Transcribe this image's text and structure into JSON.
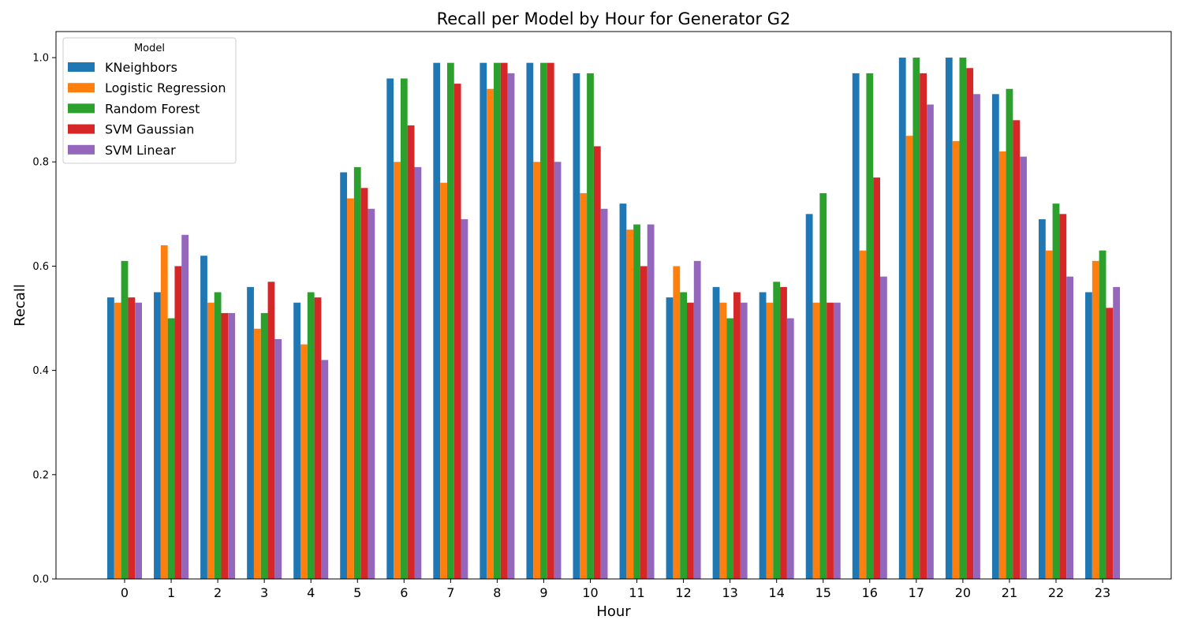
{
  "chart_data": {
    "type": "bar",
    "title": "Recall per Model by Hour for Generator G2",
    "xlabel": "Hour",
    "ylabel": "Recall",
    "ylim": [
      0,
      1.05
    ],
    "y_ticks": [
      0.0,
      0.2,
      0.4,
      0.6,
      0.8,
      1.0
    ],
    "categories": [
      "0",
      "1",
      "2",
      "3",
      "4",
      "5",
      "6",
      "7",
      "8",
      "9",
      "10",
      "11",
      "12",
      "13",
      "14",
      "15",
      "16",
      "17",
      "20",
      "21",
      "22",
      "23"
    ],
    "legend": {
      "title": "Model",
      "placement": "top-left"
    },
    "grid": false,
    "series": [
      {
        "name": "KNeighbors",
        "color": "#1f77b4",
        "values": [
          0.54,
          0.55,
          0.62,
          0.56,
          0.53,
          0.78,
          0.96,
          0.99,
          0.99,
          0.99,
          0.97,
          0.72,
          0.54,
          0.56,
          0.55,
          0.7,
          0.97,
          1.0,
          1.0,
          0.93,
          0.69,
          0.55
        ]
      },
      {
        "name": "Logistic Regression",
        "color": "#ff7f0e",
        "values": [
          0.53,
          0.64,
          0.53,
          0.48,
          0.45,
          0.73,
          0.8,
          0.76,
          0.94,
          0.8,
          0.74,
          0.67,
          0.6,
          0.53,
          0.53,
          0.53,
          0.63,
          0.85,
          0.84,
          0.82,
          0.63,
          0.61
        ]
      },
      {
        "name": "Random Forest",
        "color": "#2ca02c",
        "values": [
          0.61,
          0.5,
          0.55,
          0.51,
          0.55,
          0.79,
          0.96,
          0.99,
          0.99,
          0.99,
          0.97,
          0.68,
          0.55,
          0.5,
          0.57,
          0.74,
          0.97,
          1.0,
          1.0,
          0.94,
          0.72,
          0.63
        ]
      },
      {
        "name": "SVM Gaussian",
        "color": "#d62728",
        "values": [
          0.54,
          0.6,
          0.51,
          0.57,
          0.54,
          0.75,
          0.87,
          0.95,
          0.99,
          0.99,
          0.83,
          0.6,
          0.53,
          0.55,
          0.56,
          0.53,
          0.77,
          0.97,
          0.98,
          0.88,
          0.7,
          0.52
        ]
      },
      {
        "name": "SVM Linear",
        "color": "#9467bd",
        "values": [
          0.53,
          0.66,
          0.51,
          0.46,
          0.42,
          0.71,
          0.79,
          0.69,
          0.97,
          0.8,
          0.71,
          0.68,
          0.61,
          0.53,
          0.5,
          0.53,
          0.58,
          0.91,
          0.93,
          0.81,
          0.58,
          0.56
        ]
      }
    ]
  }
}
